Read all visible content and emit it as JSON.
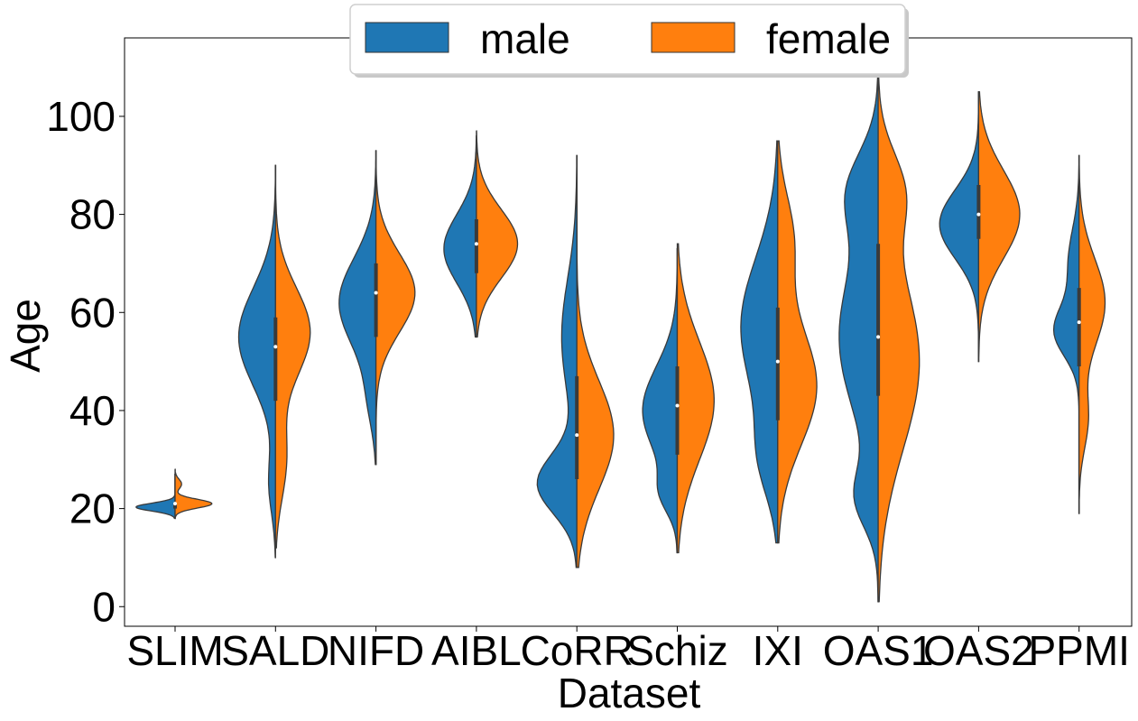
{
  "chart_data": {
    "type": "violin",
    "title": "",
    "xlabel": "Dataset",
    "ylabel": "Age",
    "ylim": [
      -4,
      116
    ],
    "yticks": [
      0,
      20,
      40,
      60,
      80,
      100
    ],
    "grid": false,
    "legend": {
      "placement": "top-center",
      "entries": [
        {
          "name": "male",
          "color": "#1f77b4"
        },
        {
          "name": "female",
          "color": "#ff7f0e"
        }
      ]
    },
    "categories": [
      "SLIM",
      "SALD",
      "NIFD",
      "AIBL",
      "CoRR",
      "Schiz",
      "IXI",
      "OAS1",
      "OAS2",
      "PPMI"
    ],
    "series": [
      {
        "name": "male",
        "color": "#1f77b4",
        "distributions": [
          {
            "min": 18,
            "max": 27,
            "q1": 20,
            "median": 21,
            "q3": 21,
            "modes": [
              {
                "age": 20.3,
                "width": 0.9,
                "sd": 0.8
              }
            ]
          },
          {
            "min": 10,
            "max": 90,
            "q1": 42,
            "median": 53,
            "q3": 59,
            "modes": [
              {
                "age": 55,
                "width": 0.85,
                "sd": 10
              },
              {
                "age": 25,
                "width": 0.15,
                "sd": 6
              }
            ]
          },
          {
            "min": 29,
            "max": 93,
            "q1": 55,
            "median": 64,
            "q3": 70,
            "modes": [
              {
                "age": 62,
                "width": 0.85,
                "sd": 9
              },
              {
                "age": 42,
                "width": 0.15,
                "sd": 6
              }
            ]
          },
          {
            "min": 55,
            "max": 96,
            "q1": 68,
            "median": 74,
            "q3": 79,
            "modes": [
              {
                "age": 73,
                "width": 0.75,
                "sd": 7
              }
            ]
          },
          {
            "min": 8,
            "max": 92,
            "q1": 26,
            "median": 35,
            "q3": 47,
            "modes": [
              {
                "age": 25,
                "width": 0.9,
                "sd": 6
              },
              {
                "age": 55,
                "width": 0.35,
                "sd": 12
              }
            ]
          },
          {
            "min": 11,
            "max": 73,
            "q1": 31,
            "median": 41,
            "q3": 49,
            "modes": [
              {
                "age": 40,
                "width": 0.8,
                "sd": 9
              },
              {
                "age": 23,
                "width": 0.3,
                "sd": 4
              }
            ]
          },
          {
            "min": 13,
            "max": 95,
            "q1": 38,
            "median": 50,
            "q3": 61,
            "modes": [
              {
                "age": 57,
                "width": 0.85,
                "sd": 14
              },
              {
                "age": 30,
                "width": 0.35,
                "sd": 8
              }
            ]
          },
          {
            "min": 1,
            "max": 108,
            "q1": 43,
            "median": 55,
            "q3": 74,
            "modes": [
              {
                "age": 55,
                "width": 0.9,
                "sd": 16
              },
              {
                "age": 85,
                "width": 0.6,
                "sd": 8
              },
              {
                "age": 22,
                "width": 0.45,
                "sd": 6
              }
            ]
          },
          {
            "min": 50,
            "max": 105,
            "q1": 75,
            "median": 80,
            "q3": 86,
            "modes": [
              {
                "age": 78,
                "width": 0.9,
                "sd": 7
              }
            ]
          },
          {
            "min": 19,
            "max": 92,
            "q1": 49,
            "median": 58,
            "q3": 65,
            "modes": [
              {
                "age": 56,
                "width": 0.55,
                "sd": 5
              },
              {
                "age": 70,
                "width": 0.25,
                "sd": 7
              }
            ]
          }
        ]
      },
      {
        "name": "female",
        "color": "#ff7f0e",
        "distributions": [
          {
            "min": 18,
            "max": 28,
            "q1": 20,
            "median": 21,
            "q3": 21,
            "modes": [
              {
                "age": 21,
                "width": 0.85,
                "sd": 0.9
              },
              {
                "age": 25,
                "width": 0.15,
                "sd": 1
              }
            ]
          },
          {
            "min": 12,
            "max": 90,
            "q1": 42,
            "median": 53,
            "q3": 59,
            "modes": [
              {
                "age": 56,
                "width": 0.8,
                "sd": 9
              },
              {
                "age": 30,
                "width": 0.25,
                "sd": 8
              }
            ]
          },
          {
            "min": 29,
            "max": 93,
            "q1": 55,
            "median": 64,
            "q3": 70,
            "modes": [
              {
                "age": 64,
                "width": 0.9,
                "sd": 8
              }
            ]
          },
          {
            "min": 55,
            "max": 97,
            "q1": 68,
            "median": 74,
            "q3": 79,
            "modes": [
              {
                "age": 74,
                "width": 0.95,
                "sd": 7
              }
            ]
          },
          {
            "min": 8,
            "max": 92,
            "q1": 26,
            "median": 35,
            "q3": 47,
            "modes": [
              {
                "age": 35,
                "width": 0.85,
                "sd": 11
              }
            ]
          },
          {
            "min": 11,
            "max": 74,
            "q1": 31,
            "median": 41,
            "q3": 49,
            "modes": [
              {
                "age": 42,
                "width": 0.85,
                "sd": 12
              }
            ]
          },
          {
            "min": 13,
            "max": 95,
            "q1": 38,
            "median": 50,
            "q3": 61,
            "modes": [
              {
                "age": 45,
                "width": 0.9,
                "sd": 12
              },
              {
                "age": 75,
                "width": 0.35,
                "sd": 9
              }
            ]
          },
          {
            "min": 1,
            "max": 108,
            "q1": 43,
            "median": 55,
            "q3": 74,
            "modes": [
              {
                "age": 50,
                "width": 0.95,
                "sd": 18
              },
              {
                "age": 85,
                "width": 0.5,
                "sd": 8
              }
            ]
          },
          {
            "min": 50,
            "max": 105,
            "q1": 75,
            "median": 80,
            "q3": 86,
            "modes": [
              {
                "age": 80,
                "width": 0.95,
                "sd": 9
              }
            ]
          },
          {
            "min": 19,
            "max": 92,
            "q1": 49,
            "median": 58,
            "q3": 65,
            "modes": [
              {
                "age": 62,
                "width": 0.6,
                "sd": 9
              },
              {
                "age": 38,
                "width": 0.2,
                "sd": 6
              }
            ]
          }
        ]
      }
    ]
  }
}
